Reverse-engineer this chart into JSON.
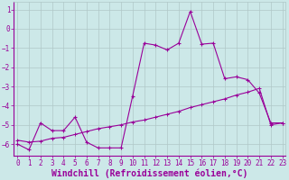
{
  "xlabel": "Windchill (Refroidissement éolien,°C)",
  "background_color": "#cce8e8",
  "grid_color": "#b0c8c8",
  "line_color": "#990099",
  "x_ticks": [
    0,
    1,
    2,
    3,
    4,
    5,
    6,
    7,
    8,
    9,
    10,
    11,
    12,
    13,
    14,
    15,
    16,
    17,
    18,
    19,
    20,
    21,
    22,
    23
  ],
  "y_ticks": [
    -6,
    -5,
    -4,
    -3,
    -2,
    -1,
    0,
    1
  ],
  "ylim": [
    -6.6,
    1.4
  ],
  "xlim": [
    -0.3,
    23.3
  ],
  "series1_x": [
    0,
    1,
    2,
    3,
    4,
    5,
    6,
    7,
    8,
    9,
    10,
    11,
    12,
    13,
    14,
    15,
    16,
    17,
    18,
    19,
    20,
    21,
    22,
    23
  ],
  "series1_y": [
    -6.0,
    -6.3,
    -4.9,
    -5.3,
    -5.3,
    -4.6,
    -5.9,
    -6.2,
    -6.2,
    -6.2,
    -3.5,
    -0.75,
    -0.85,
    -1.1,
    -0.75,
    0.9,
    -0.8,
    -0.75,
    -2.6,
    -2.5,
    -2.65,
    -3.35,
    -4.9,
    -4.9
  ],
  "series2_x": [
    0,
    1,
    2,
    3,
    4,
    5,
    6,
    7,
    8,
    9,
    10,
    11,
    12,
    13,
    14,
    15,
    16,
    17,
    18,
    19,
    20,
    21,
    22,
    23
  ],
  "series2_y": [
    -5.8,
    -5.9,
    -5.85,
    -5.7,
    -5.65,
    -5.5,
    -5.35,
    -5.2,
    -5.1,
    -5.0,
    -4.85,
    -4.75,
    -4.6,
    -4.45,
    -4.3,
    -4.1,
    -3.95,
    -3.8,
    -3.65,
    -3.45,
    -3.3,
    -3.1,
    -5.0,
    -4.9
  ],
  "tick_fontsize": 5.5,
  "xlabel_fontsize": 7.0,
  "xlabel_fontweight": "bold"
}
